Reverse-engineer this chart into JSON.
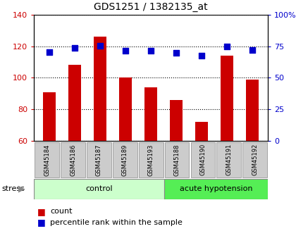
{
  "title": "GDS1251 / 1382135_at",
  "samples": [
    "GSM45184",
    "GSM45186",
    "GSM45187",
    "GSM45189",
    "GSM45193",
    "GSM45188",
    "GSM45190",
    "GSM45191",
    "GSM45192"
  ],
  "counts": [
    91,
    108,
    126,
    100,
    94,
    86,
    72,
    114,
    99
  ],
  "percentiles": [
    70.5,
    73.5,
    75.5,
    71.5,
    71.5,
    69.5,
    67.5,
    74.5,
    72.0
  ],
  "group_control_count": 5,
  "group_acute_count": 4,
  "ylim_left": [
    60,
    140
  ],
  "ylim_right": [
    0,
    100
  ],
  "yticks_left": [
    60,
    80,
    100,
    120,
    140
  ],
  "yticks_right": [
    0,
    25,
    50,
    75,
    100
  ],
  "bar_color": "#cc0000",
  "dot_color": "#0000cc",
  "control_bg": "#ccffcc",
  "acute_bg": "#55ee55",
  "tick_label_bg": "#cccccc",
  "legend_count_label": "count",
  "legend_pct_label": "percentile rank within the sample",
  "stress_label": "stress",
  "control_label": "control",
  "acute_label": "acute hypotension"
}
